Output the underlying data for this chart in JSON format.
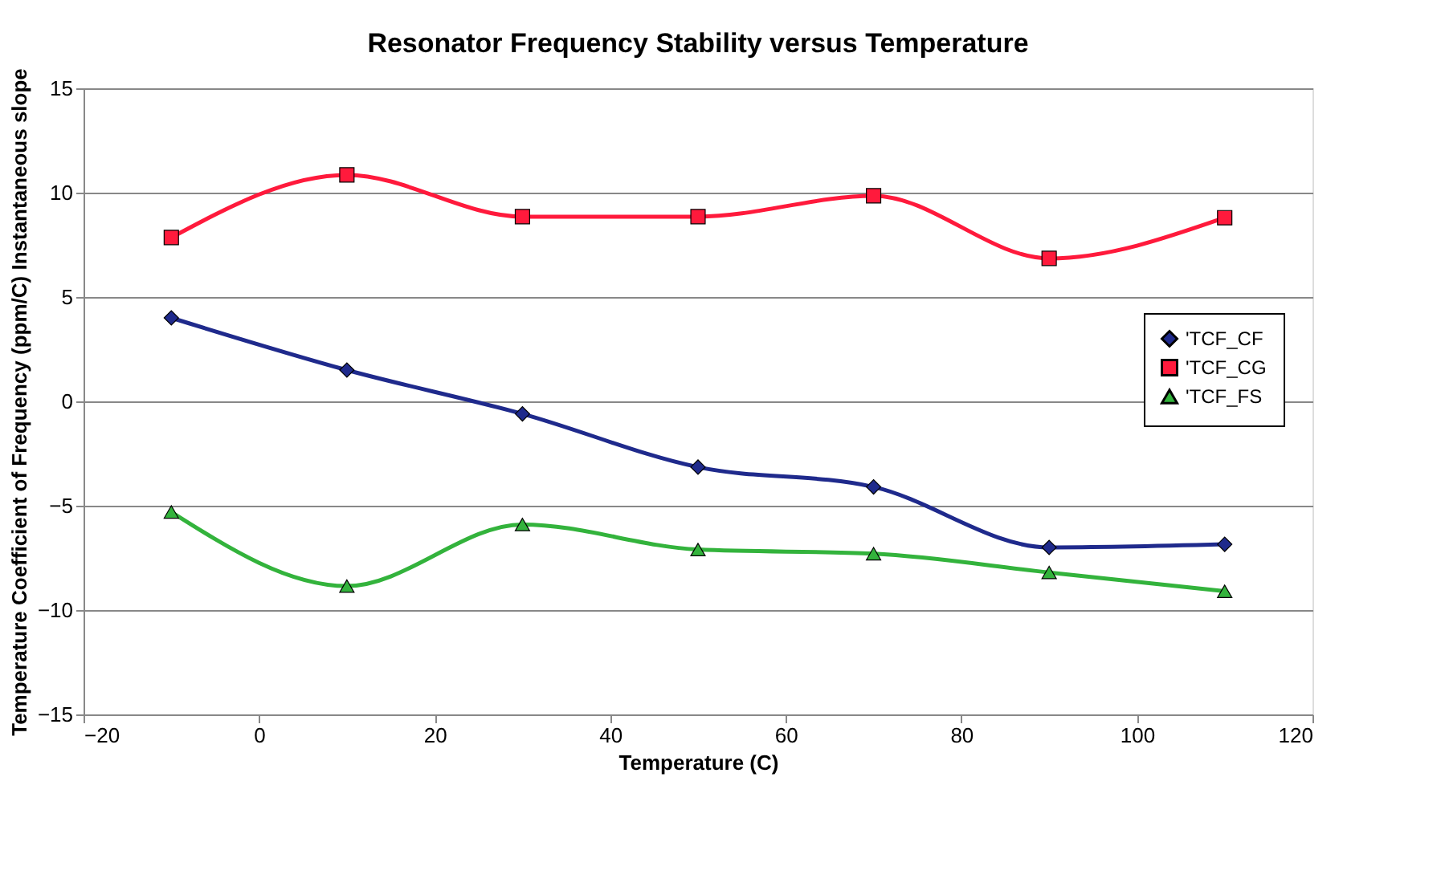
{
  "chart_data": {
    "type": "line",
    "title": "Resonator Frequency Stability versus Temperature",
    "xlabel": "Temperature (C)",
    "ylabel": "Temperature Coefficient of Frequency (ppm/C)  Instantaneous slope",
    "x": [
      -10,
      10,
      30,
      50,
      70,
      90,
      110
    ],
    "series": [
      {
        "name": "'TCF_CF",
        "color": "#1f2a8c",
        "marker": "diamond",
        "values": [
          4.0,
          1.5,
          -0.6,
          -3.15,
          -4.1,
          -7.0,
          -6.85
        ]
      },
      {
        "name": "'TCF_CG",
        "color": "#ff1a3c",
        "marker": "square",
        "values": [
          7.85,
          10.85,
          8.85,
          8.85,
          9.85,
          6.85,
          8.8
        ]
      },
      {
        "name": "'TCF_FS",
        "color": "#33b33c",
        "marker": "triangle",
        "values": [
          -5.3,
          -8.85,
          -5.9,
          -7.1,
          -7.3,
          -8.2,
          -9.1
        ]
      }
    ],
    "xlim": [
      -20,
      120
    ],
    "xticks": [
      -20,
      0,
      20,
      40,
      60,
      80,
      100,
      120
    ],
    "ylim": [
      -15,
      15
    ],
    "yticks": [
      -15,
      -10,
      -5,
      0,
      5,
      10,
      15
    ],
    "grid": "y",
    "legend": "right",
    "line_style": "solid"
  }
}
